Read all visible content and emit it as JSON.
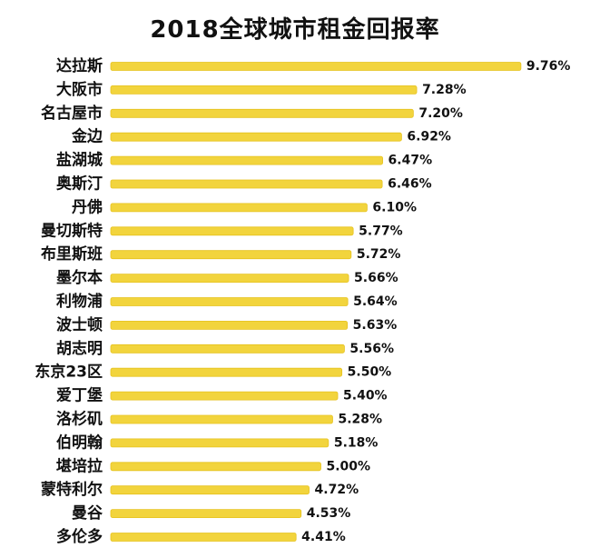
{
  "chart_data": {
    "type": "bar",
    "orientation": "horizontal",
    "title": "2018全球城市租金回报率",
    "xlabel": "",
    "ylabel": "",
    "categories": [
      "达拉斯",
      "大阪市",
      "名古屋市",
      "金边",
      "盐湖城",
      "奥斯汀",
      "丹佛",
      "曼切斯特",
      "布里斯班",
      "墨尔本",
      "利物浦",
      "波士顿",
      "胡志明",
      "东京23区",
      "爱丁堡",
      "洛杉矶",
      "伯明翰",
      "堪培拉",
      "蒙特利尔",
      "曼谷",
      "多伦多"
    ],
    "values": [
      9.76,
      7.28,
      7.2,
      6.92,
      6.47,
      6.46,
      6.1,
      5.77,
      5.72,
      5.66,
      5.64,
      5.63,
      5.56,
      5.5,
      5.4,
      5.28,
      5.18,
      5.0,
      4.72,
      4.53,
      4.41
    ],
    "value_labels": [
      "9.76%",
      "7.28%",
      "7.20%",
      "6.92%",
      "6.47%",
      "6.46%",
      "6.10%",
      "5.77%",
      "5.72%",
      "5.66%",
      "5.64%",
      "5.63%",
      "5.56%",
      "5.50%",
      "5.40%",
      "5.28%",
      "5.18%",
      "5.00%",
      "4.72%",
      "4.53%",
      "4.41%"
    ],
    "unit": "%",
    "bar_color": "#F2D43D",
    "bar_stroke_color": "#E6C21F",
    "grid": false,
    "legend": "none"
  }
}
